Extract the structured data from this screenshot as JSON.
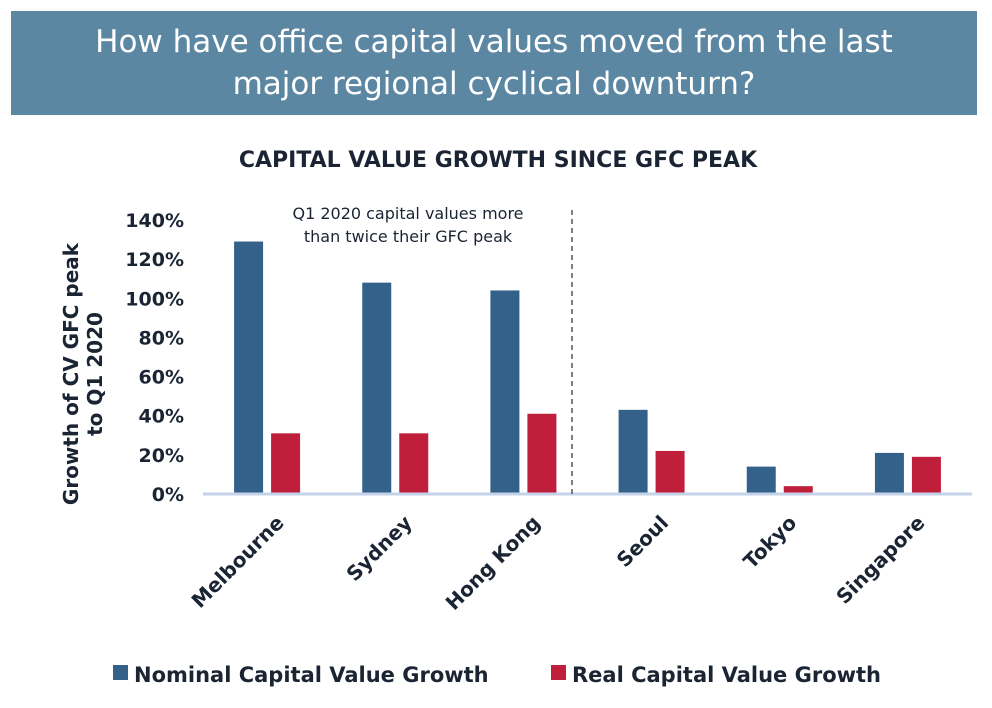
{
  "header": {
    "title": "How have office capital values moved from the last major regional cyclical downturn?"
  },
  "chart_data": {
    "type": "bar",
    "title": "CAPITAL VALUE GROWTH SINCE GFC PEAK",
    "ylabel": [
      "Growth of CV GFC peak",
      "to Q1 2020"
    ],
    "xlabel": "",
    "categories": [
      "Melbourne",
      "Sydney",
      "Hong Kong",
      "Seoul",
      "Tokyo",
      "Singapore"
    ],
    "series": [
      {
        "name": "Nominal Capital Value Growth",
        "color": "#34618a",
        "values": [
          129,
          108,
          104,
          43,
          14,
          21
        ]
      },
      {
        "name": "Real Capital Value Growth",
        "color": "#c01f3b",
        "values": [
          31,
          31,
          41,
          22,
          4,
          19
        ]
      }
    ],
    "ylim": [
      0,
      140
    ],
    "yticks": [
      "0%",
      "20%",
      "40%",
      "60%",
      "80%",
      "100%",
      "120%",
      "140%"
    ],
    "ytick_values": [
      0,
      20,
      40,
      60,
      80,
      100,
      120,
      140
    ],
    "annotation": [
      "Q1 2020 capital values more",
      "than twice their GFC peak"
    ],
    "divider_after_category": 3,
    "legend_position": "bottom",
    "grid": false,
    "axis_color": "#c5d3ea"
  }
}
